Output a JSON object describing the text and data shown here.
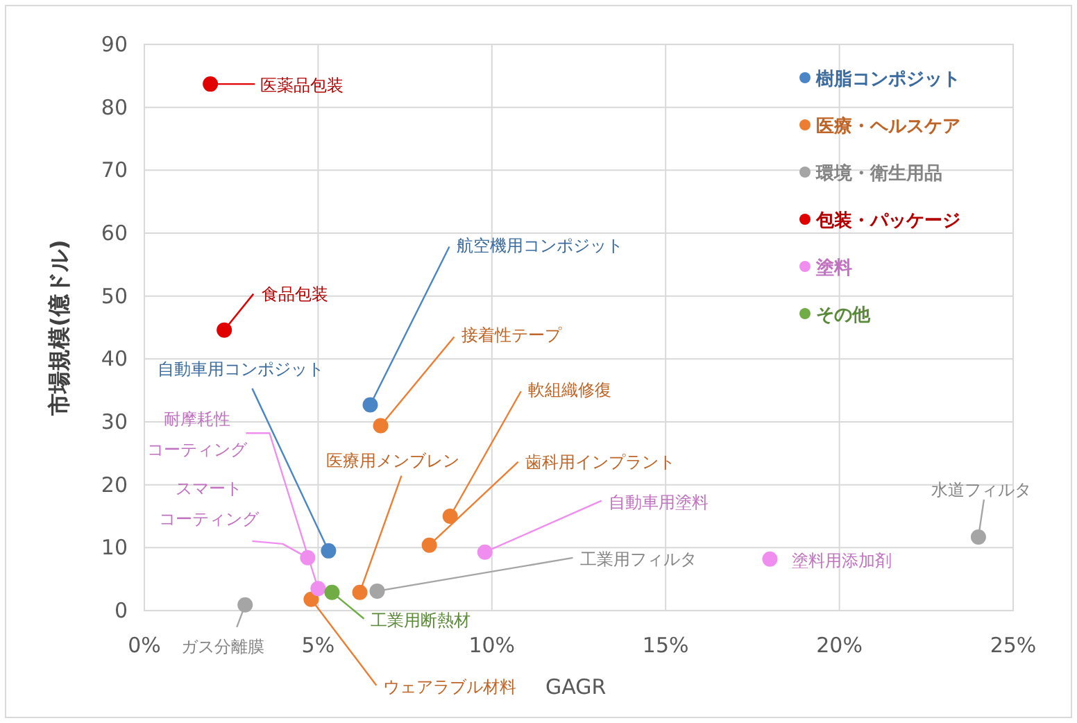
{
  "chart_data": {
    "type": "scatter",
    "xlabel": "GAGR",
    "ylabel": "市場規模(億ドル)",
    "marker": "circle",
    "grid": true,
    "legend": "top right",
    "xlim": [
      0,
      25
    ],
    "ylim": [
      0,
      90
    ],
    "xticks": [
      {
        "value": 0,
        "label": "0%"
      },
      {
        "value": 5,
        "label": "5%"
      },
      {
        "value": 10,
        "label": "10%"
      },
      {
        "value": 15,
        "label": "15%"
      },
      {
        "value": 20,
        "label": "20%"
      },
      {
        "value": 25,
        "label": "25%"
      }
    ],
    "yticks": [
      0,
      10,
      20,
      30,
      40,
      50,
      60,
      70,
      80,
      90
    ],
    "series": [
      {
        "name": "樹脂コンポジット",
        "color": "#4a86c5",
        "x": [
          6.5,
          5.3
        ],
        "values": [
          32.7,
          9.5
        ]
      },
      {
        "name": "医療・ヘルスケア",
        "color": "#ed7d31",
        "x": [
          6.8,
          8.8,
          8.2,
          6.2,
          4.8
        ],
        "values": [
          29.4,
          15,
          10.4,
          2.9,
          1.8
        ]
      },
      {
        "name": "環境・衛生用品",
        "color": "#a5a5a5",
        "x": [
          2.9,
          6.7,
          24.0
        ],
        "values": [
          0.9,
          3.1,
          11.7
        ]
      },
      {
        "name": "包装・パッケージ",
        "color": "#e00000",
        "x": [
          1.9,
          2.3
        ],
        "values": [
          83.7,
          44.6
        ]
      },
      {
        "name": "塗料",
        "color": "#f08ef0",
        "x": [
          4.7,
          5.0,
          9.8,
          18.0
        ],
        "values": [
          8.4,
          3.5,
          9.3,
          8.2
        ]
      },
      {
        "name": "その他",
        "color": "#70ad47",
        "x": [
          5.4
        ],
        "values": [
          2.9
        ]
      }
    ],
    "annotations": [
      {
        "text": "医薬品包装",
        "x": 1.9,
        "y": 83.7
      },
      {
        "text": "食品包装",
        "x": 2.3,
        "y": 44.6
      },
      {
        "text": "航空機用コンポジット",
        "x": 6.5,
        "y": 32.7
      },
      {
        "text": "自動車用コンポジット",
        "x": 5.3,
        "y": 9.5
      },
      {
        "text": "接着性テープ",
        "x": 6.8,
        "y": 29.4
      },
      {
        "text": "軟組織修復",
        "x": 8.8,
        "y": 15
      },
      {
        "text": "歯科用インプラント",
        "x": 8.2,
        "y": 10.4
      },
      {
        "text": "医療用メンブレン",
        "x": 6.2,
        "y": 2.9
      },
      {
        "text": "ウェアラブル材料",
        "x": 4.8,
        "y": 1.8
      },
      {
        "text": "ガス分離膜",
        "x": 2.9,
        "y": 0.9
      },
      {
        "text": "工業用フィルタ",
        "x": 6.7,
        "y": 3.1
      },
      {
        "text": "水道フィルタ",
        "x": 24.0,
        "y": 11.7
      },
      {
        "text": "スマートコーティング",
        "x": 4.7,
        "y": 8.4
      },
      {
        "text": "耐摩耗性コーティング",
        "x": 5.0,
        "y": 3.5
      },
      {
        "text": "自動車用塗料",
        "x": 9.8,
        "y": 9.3
      },
      {
        "text": "塗料用添加剤",
        "x": 18.0,
        "y": 8.2
      },
      {
        "text": "工業用断熱材",
        "x": 5.4,
        "y": 2.9
      }
    ]
  }
}
